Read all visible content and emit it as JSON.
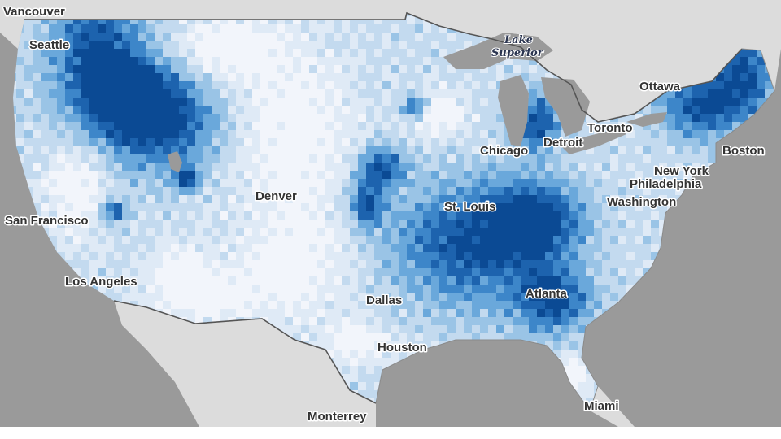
{
  "map": {
    "colors": {
      "ocean": "#9a9a9a",
      "land": "#dcdcdc",
      "border": "#555555",
      "lakes": "#9a9a9a",
      "scale": [
        "#f2f5fb",
        "#dfeaf6",
        "#c3daef",
        "#9ac4e6",
        "#6aa8db",
        "#3d86c9",
        "#1d63ae",
        "#0b4a94"
      ]
    },
    "lake_label": [
      "Lake",
      "Superior"
    ],
    "cities": [
      {
        "name": "Vancouver"
      },
      {
        "name": "Seattle"
      },
      {
        "name": "San Francisco"
      },
      {
        "name": "Los Angeles"
      },
      {
        "name": "Denver"
      },
      {
        "name": "Dallas"
      },
      {
        "name": "Houston"
      },
      {
        "name": "Monterrey"
      },
      {
        "name": "St. Louis"
      },
      {
        "name": "Chicago"
      },
      {
        "name": "Detroit"
      },
      {
        "name": "Toronto"
      },
      {
        "name": "Ottawa"
      },
      {
        "name": "Boston"
      },
      {
        "name": "New York"
      },
      {
        "name": "Philadelphia"
      },
      {
        "name": "Washington"
      },
      {
        "name": "Atlanta"
      },
      {
        "name": "Miami"
      }
    ]
  }
}
